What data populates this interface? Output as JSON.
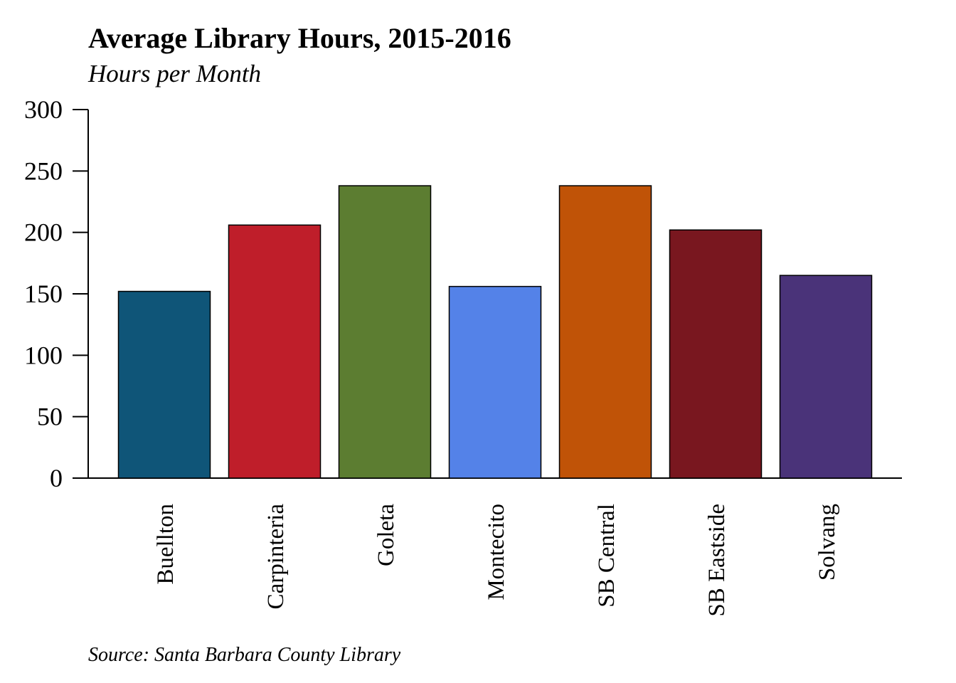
{
  "chart_data": {
    "type": "bar",
    "title": "Average Library Hours, 2015-2016",
    "subtitle": "Hours per Month",
    "source": "Source: Santa Barbara County Library",
    "xlabel": "",
    "ylabel": "",
    "categories": [
      "Buellton",
      "Carpinteria",
      "Goleta",
      "Montecito",
      "SB Central",
      "SB Eastside",
      "Solvang"
    ],
    "values": [
      152,
      206,
      238,
      156,
      238,
      202,
      165
    ],
    "colors": [
      "#0f5578",
      "#bf1e2a",
      "#5c7d31",
      "#5482e8",
      "#c05307",
      "#79171f",
      "#4a3379"
    ],
    "ylim": [
      0,
      300
    ],
    "yticks": [
      0,
      50,
      100,
      150,
      200,
      250,
      300
    ],
    "grid": false,
    "legend": "none"
  }
}
